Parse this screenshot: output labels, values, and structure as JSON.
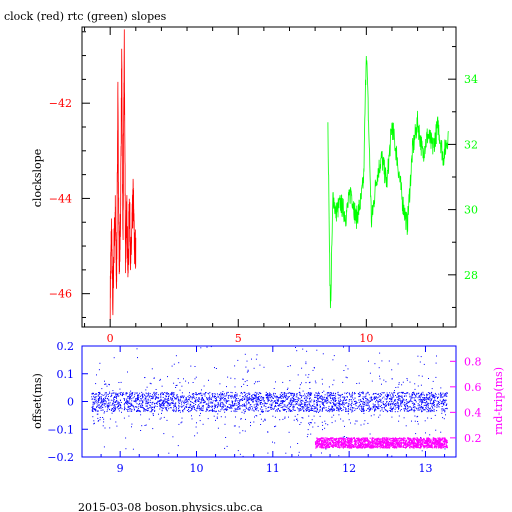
{
  "footer_text": "2015-03-08  boson.physics.ubc.ca",
  "colors": {
    "red": "#ff0000",
    "green": "#00ff00",
    "blue": "#0000ff",
    "magenta": "#ff00ff",
    "axis": "#000000"
  },
  "chart_data": [
    {
      "type": "line",
      "title": "clock (red) rtc (green) slopes",
      "ylabel": "clockslope",
      "xlim": [
        -1.1,
        13.5
      ],
      "xticks": [
        0,
        5,
        10
      ],
      "xtick_color": "#ff0000",
      "y_left": {
        "lim": [
          -46.7,
          -40.4
        ],
        "ticks": [
          -42,
          -44,
          -46
        ],
        "color": "#ff0000"
      },
      "y_right": {
        "lim": [
          26.4,
          35.6
        ],
        "ticks": [
          28,
          30,
          32,
          34
        ],
        "color": "#00ff00"
      },
      "series": [
        {
          "color": "#ff0000",
          "axis": "left",
          "x_range": [
            0.0,
            1.0
          ],
          "x": [
            0.0,
            0.05,
            0.1,
            0.15,
            0.2,
            0.25,
            0.3,
            0.35,
            0.4,
            0.45,
            0.5,
            0.55,
            0.6,
            0.65,
            0.7,
            0.75,
            0.8,
            0.85,
            0.9,
            0.95,
            1.0
          ],
          "y": [
            -46.1,
            -44.6,
            -46.3,
            -45.0,
            -44.3,
            -45.9,
            -41.9,
            -45.4,
            -44.6,
            -41.2,
            -45.0,
            -40.6,
            -45.3,
            -44.2,
            -45.6,
            -44.0,
            -45.4,
            -44.7,
            -43.9,
            -45.1,
            -45.0
          ],
          "noise": 0.45
        },
        {
          "color": "#00ff00",
          "axis": "right",
          "x_range": [
            8.5,
            13.2
          ],
          "x": [
            8.5,
            8.6,
            8.7,
            8.8,
            9.0,
            9.2,
            9.4,
            9.6,
            9.8,
            9.9,
            10.0,
            10.2,
            10.4,
            10.6,
            10.8,
            11.0,
            11.2,
            11.4,
            11.6,
            11.8,
            12.0,
            12.2,
            12.4,
            12.6,
            12.8,
            13.0,
            13.2
          ],
          "y": [
            32.4,
            26.8,
            30.5,
            29.9,
            30.2,
            29.8,
            30.6,
            29.7,
            30.3,
            31.0,
            35.0,
            29.6,
            31.0,
            31.6,
            30.8,
            32.6,
            31.6,
            30.3,
            29.5,
            31.8,
            32.7,
            31.7,
            32.3,
            31.9,
            32.6,
            31.6,
            32.3
          ],
          "noise": 0.35
        }
      ]
    },
    {
      "type": "scatter",
      "ylabel_left": "offset(ms)",
      "ylabel_right": "rnd-trip(ms)",
      "xlim": [
        8.5,
        13.4
      ],
      "xticks": [
        9,
        10,
        11,
        12,
        13
      ],
      "y_left": {
        "lim": [
          -0.2,
          0.2
        ],
        "ticks": [
          -0.2,
          -0.1,
          0,
          0.1,
          0.2
        ],
        "color": "#0000ff"
      },
      "y_right": {
        "lim": [
          0.05,
          0.92
        ],
        "ticks": [
          0.2,
          0.4,
          0.6,
          0.8
        ],
        "color": "#ff00ff"
      },
      "series": [
        {
          "color": "#0000ff",
          "axis": "left",
          "x_range": [
            8.62,
            13.28
          ],
          "center": 0.0,
          "band": 0.035,
          "outlier_range": [
            -0.2,
            0.2
          ]
        },
        {
          "color": "#ff00ff",
          "axis": "right",
          "x_range": [
            11.55,
            13.28
          ],
          "center": 0.165,
          "band": 0.04
        }
      ]
    }
  ]
}
